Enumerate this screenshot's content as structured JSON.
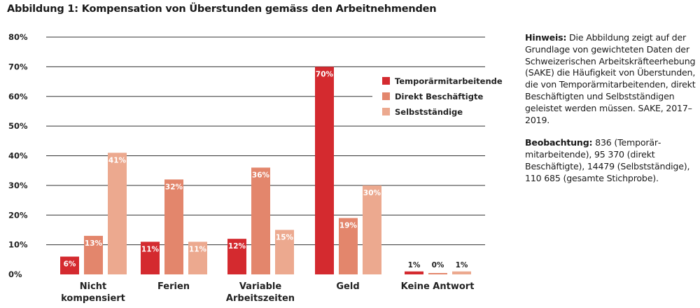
{
  "title": "Abbildung 1: Kompensation von Überstunden gemäss den Arbeitnehmenden",
  "chart_data": {
    "type": "bar",
    "title": "Abbildung 1: Kompensation von Überstunden gemäss den Arbeitnehmenden",
    "categories": [
      [
        "Nicht",
        "kompensiert"
      ],
      [
        "Ferien"
      ],
      [
        "Variable",
        "Arbeitszeiten"
      ],
      [
        "Geld"
      ],
      [
        "Keine Antwort"
      ]
    ],
    "series": [
      {
        "name": "Temporärmitarbeitende",
        "color": "#d42a2f",
        "values": [
          6,
          11,
          12,
          70,
          1
        ],
        "labels": [
          "6%",
          "11%",
          "12%",
          "70%",
          "1%"
        ]
      },
      {
        "name": "Direkt Beschäftigte",
        "color": "#e3866c",
        "values": [
          13,
          32,
          36,
          19,
          0
        ],
        "labels": [
          "13%",
          "32%",
          "36%",
          "19%",
          "0%"
        ]
      },
      {
        "name": "Selbstständige",
        "color": "#eca98f",
        "values": [
          41,
          11,
          15,
          30,
          1
        ],
        "labels": [
          "41%",
          "11%",
          "15%",
          "30%",
          "1%"
        ]
      }
    ],
    "yticks": [
      "0%",
      "10%",
      "20%",
      "30%",
      "40%",
      "50%",
      "60%",
      "70%",
      "80%"
    ],
    "ylim": [
      0,
      80
    ],
    "grid": true,
    "legend": "top-right"
  },
  "note": {
    "hint_label": "Hinweis:",
    "hint_text": " Die Abbildung zeigt auf der Grundlage von gewichteten Daten der Schweizerischen Arbeits­kräfteerhebung (SAKE) die Häufig­keit von Überstunden, die von Temporärmitarbeitenden, direkt Beschäftigten und Selbstständigen geleistet werden müssen. SAKE, 2017–2019.",
    "obs_label": "Beobachtung:",
    "obs_text": " 836 (Temporär­mitarbeitende), 95 370 (direkt Beschäftigte), 14479 (Selbst­ständige), 110 685 (gesamte Stichprobe)."
  }
}
